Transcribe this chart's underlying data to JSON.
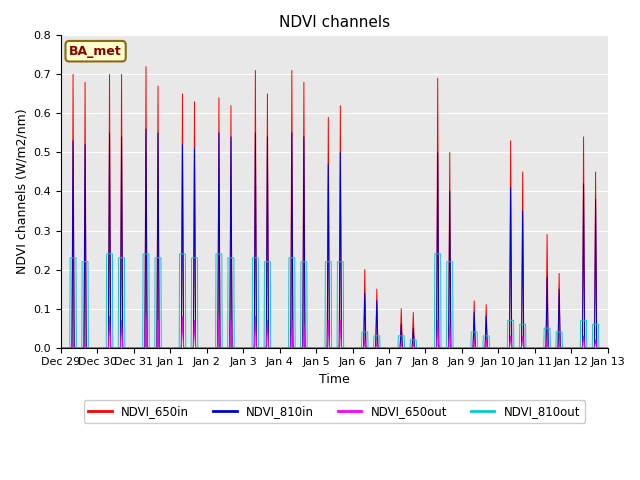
{
  "title": "NDVI channels",
  "ylabel": "NDVI channels (W/m2/nm)",
  "xlabel": "Time",
  "ylim": [
    0.0,
    0.8
  ],
  "annotation_text": "BA_met",
  "legend_labels": [
    "NDVI_650in",
    "NDVI_810in",
    "NDVI_650out",
    "NDVI_810out"
  ],
  "legend_colors": [
    "#ff0000",
    "#0000cc",
    "#ff00ff",
    "#00cccc"
  ],
  "plot_bg_color": "#e8e8e8",
  "fig_bg_color": "#ffffff",
  "xtick_labels": [
    "Dec 29",
    "Dec 30",
    "Dec 31",
    "Jan 1",
    "Jan 2",
    "Jan 3",
    "Jan 4",
    "Jan 5",
    "Jan 6",
    "Jan 7",
    "Jan 8",
    "Jan 9",
    "Jan 10",
    "Jan 11",
    "Jan 12",
    "Jan 13"
  ],
  "peak1_650in": [
    0.7,
    0.7,
    0.72,
    0.65,
    0.64,
    0.71,
    0.71,
    0.59,
    0.2,
    0.1,
    0.69,
    0.12,
    0.53,
    0.29,
    0.54,
    0.0
  ],
  "peak2_650in": [
    0.68,
    0.7,
    0.67,
    0.63,
    0.62,
    0.65,
    0.68,
    0.62,
    0.15,
    0.09,
    0.5,
    0.11,
    0.45,
    0.19,
    0.45,
    0.0
  ],
  "peak1_810in": [
    0.53,
    0.55,
    0.56,
    0.52,
    0.55,
    0.55,
    0.55,
    0.47,
    0.14,
    0.06,
    0.5,
    0.09,
    0.41,
    0.18,
    0.42,
    0.0
  ],
  "peak2_810in": [
    0.52,
    0.54,
    0.55,
    0.51,
    0.54,
    0.54,
    0.54,
    0.5,
    0.12,
    0.05,
    0.4,
    0.08,
    0.35,
    0.15,
    0.38,
    0.0
  ],
  "peak1_650out": [
    0.01,
    0.08,
    0.08,
    0.08,
    0.08,
    0.08,
    0.07,
    0.07,
    0.02,
    0.01,
    0.07,
    0.02,
    0.03,
    0.02,
    0.03,
    0.0
  ],
  "peak2_650out": [
    0.01,
    0.07,
    0.07,
    0.07,
    0.07,
    0.07,
    0.06,
    0.07,
    0.01,
    0.01,
    0.06,
    0.02,
    0.03,
    0.01,
    0.02,
    0.0
  ],
  "peak1_810out": [
    0.23,
    0.24,
    0.24,
    0.24,
    0.24,
    0.23,
    0.23,
    0.22,
    0.04,
    0.03,
    0.24,
    0.04,
    0.07,
    0.05,
    0.07,
    0.0
  ],
  "peak2_810out": [
    0.22,
    0.23,
    0.23,
    0.23,
    0.23,
    0.22,
    0.22,
    0.22,
    0.03,
    0.02,
    0.22,
    0.03,
    0.06,
    0.04,
    0.06,
    0.0
  ],
  "title_fontsize": 11,
  "label_fontsize": 9,
  "tick_fontsize": 8
}
